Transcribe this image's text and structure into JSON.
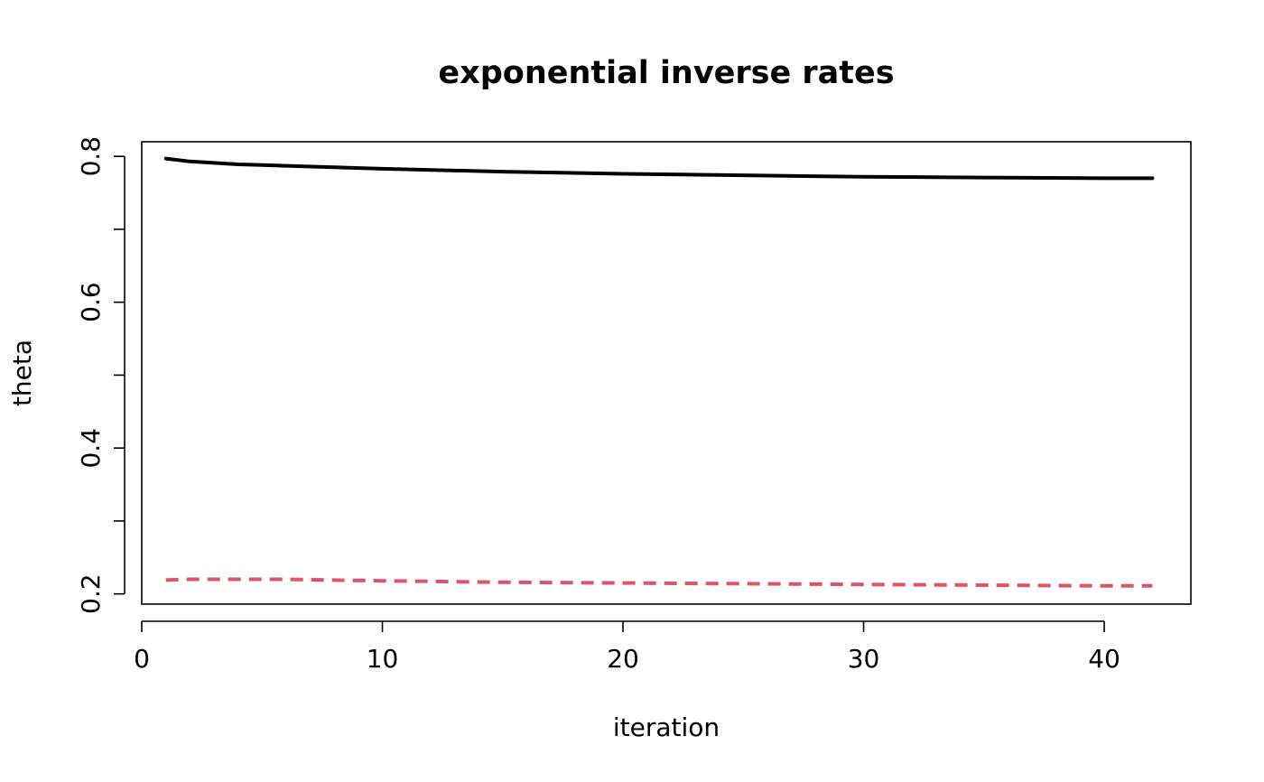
{
  "chart_data": {
    "type": "line",
    "title": "exponential inverse rates",
    "xlabel": "iteration",
    "ylabel": "theta",
    "xlim": [
      0,
      43.6
    ],
    "ylim": [
      0.186,
      0.82
    ],
    "x_ticks": [
      0,
      10,
      20,
      30,
      40
    ],
    "x_tick_labels": [
      "0",
      "10",
      "20",
      "30",
      "40"
    ],
    "y_ticks": [
      0.2,
      0.3,
      0.4,
      0.5,
      0.6,
      0.7,
      0.8
    ],
    "y_tick_labels": [
      "0.2",
      "",
      "0.4",
      "",
      "0.6",
      "",
      "0.8"
    ],
    "grid": false,
    "legend": "none",
    "series": [
      {
        "color": "#000000",
        "dash": "solid",
        "x": [
          1,
          2,
          3,
          4,
          5,
          6,
          8,
          10,
          15,
          20,
          25,
          30,
          35,
          40,
          42
        ],
        "y": [
          0.797,
          0.793,
          0.791,
          0.789,
          0.788,
          0.787,
          0.785,
          0.783,
          0.779,
          0.776,
          0.774,
          0.772,
          0.771,
          0.77,
          0.77
        ]
      },
      {
        "color": "#DF536B",
        "dash": "dashed",
        "x": [
          1,
          2,
          3,
          4,
          5,
          6,
          8,
          10,
          15,
          20,
          25,
          30,
          35,
          40,
          42
        ],
        "y": [
          0.219,
          0.22,
          0.22,
          0.22,
          0.22,
          0.22,
          0.219,
          0.218,
          0.216,
          0.215,
          0.214,
          0.213,
          0.212,
          0.211,
          0.211
        ]
      }
    ]
  }
}
